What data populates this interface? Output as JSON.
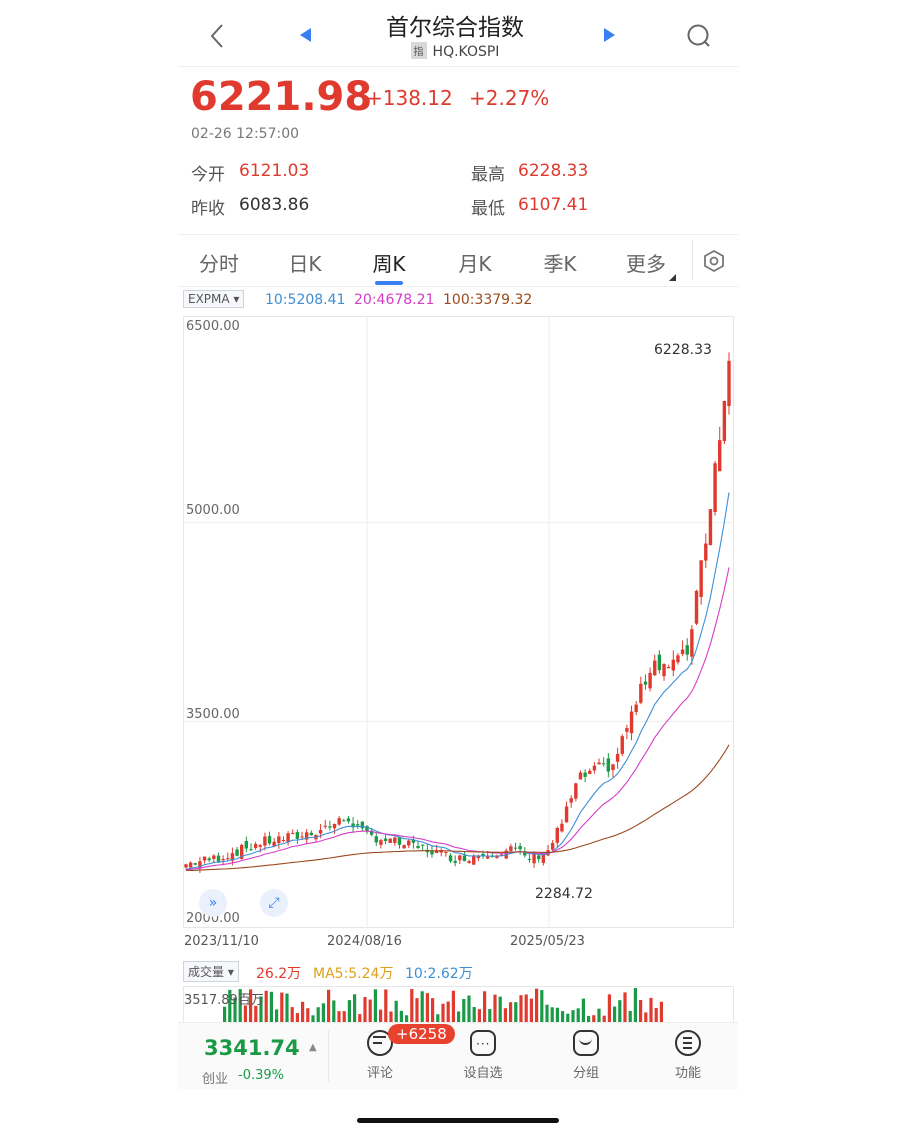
{
  "header": {
    "title": "首尔综合指数",
    "index_tag": "指",
    "code": "HQ.KOSPI"
  },
  "quote": {
    "price": "6221.98",
    "change": "+138.12",
    "change_pct": "+2.27%",
    "timestamp": "02-26 12:57:00",
    "open_label": "今开",
    "open": "6121.03",
    "high_label": "最高",
    "high": "6228.33",
    "prev_close_label": "昨收",
    "prev_close": "6083.86",
    "low_label": "最低",
    "low": "6107.41"
  },
  "tabs": [
    {
      "label": "分时"
    },
    {
      "label": "日K"
    },
    {
      "label": "周K"
    },
    {
      "label": "月K"
    },
    {
      "label": "季K"
    },
    {
      "label": "更多"
    }
  ],
  "indicator": {
    "name": "EXPMA",
    "ema10": "10:5208.41",
    "ema20": "20:4678.21",
    "ema100": "100:3379.32"
  },
  "chart": {
    "y_labels": [
      "6500.00",
      "5000.00",
      "3500.00",
      "2000.00"
    ],
    "x_labels": [
      "2023/11/10",
      "2024/08/16",
      "2025/05/23"
    ],
    "max_label": "6228.33",
    "min_label": "2284.72"
  },
  "chart_data": {
    "type": "candlestick",
    "ylim": [
      2000,
      6500
    ],
    "y_ticks": [
      6500,
      5000,
      3500,
      2000
    ],
    "x_ticks": [
      "2023/11/10",
      "2024/08/16",
      "2025/05/23"
    ],
    "max": 6228.33,
    "min": 2284.72
  },
  "volume": {
    "name": "成交量",
    "current": "26.2万",
    "ma5": "MA5:5.24万",
    "ma10": "10:2.62万",
    "y_label": "3517.89百万"
  },
  "bottom_nav": {
    "index_value": "3341.74",
    "index_name": "创业",
    "index_change": "-0.39%",
    "comment_badge": "+6258",
    "comment": "评论",
    "watchlist": "设自选",
    "group": "分组",
    "functions": "功能"
  },
  "colors": {
    "up": "#e03a2f",
    "down": "#1a9a46",
    "accent": "#3a7ff2",
    "ema10": "#3d8fd6",
    "ema20": "#d63cc8",
    "ema100": "#9a4a1c"
  }
}
